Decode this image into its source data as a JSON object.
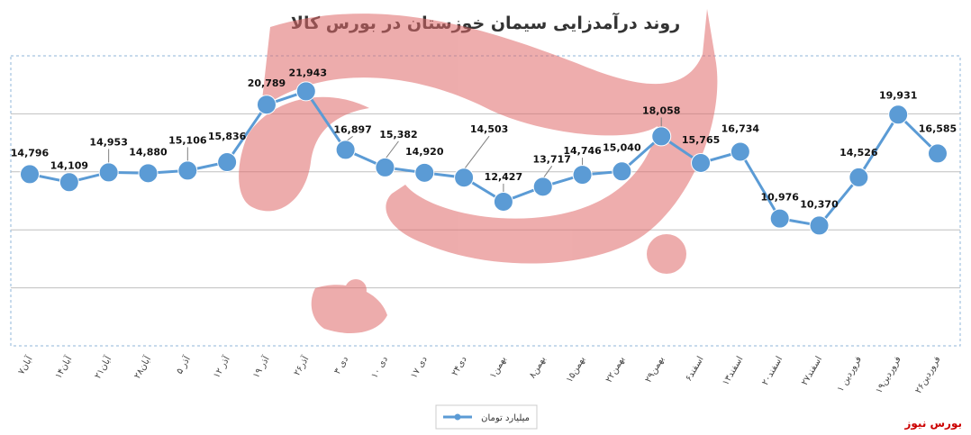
{
  "chart_data": {
    "type": "line",
    "title": "روند درآمدزایی سیمان خوزستان در بورس کالا",
    "xlabel": "",
    "ylabel": "",
    "ylim": [
      0,
      25000
    ],
    "grid": true,
    "legend_position": "bottom",
    "categories": [
      "۷آبان",
      "۱۴آبان",
      "۲۱آبان",
      "۲۸آبان",
      "۵ آذر",
      "۱۲ آذر",
      "۱۹ آذر",
      "۲۶آذر",
      "۳ دی",
      "۱۰ دی",
      "۱۷ دی",
      "۲۴دی",
      "۱بهمن",
      "۸بهمن",
      "۱۵بهمن",
      "۲۲بهمن",
      "۲۹بهمن",
      "۶اسفند",
      "۱۳اسفند",
      "۲۰اسفند",
      "۲۷اسفند",
      "۱ فروردین",
      "۱۹فروردین",
      "۲۶فروردین"
    ],
    "series": [
      {
        "name": "میلیارد تومان",
        "color": "#5b9bd5",
        "values": [
          14796,
          14109,
          14953,
          14880,
          15106,
          15836,
          20789,
          21943,
          16897,
          15382,
          14920,
          14503,
          12427,
          13717,
          14746,
          15040,
          18058,
          15765,
          16734,
          10976,
          10370,
          14526,
          19931,
          16585
        ],
        "labels": [
          "14,796",
          "14,109",
          "14,953",
          "14,880",
          "15,106",
          "15,836",
          "20,789",
          "21,943",
          "16,897",
          "15,382",
          "14,920",
          "14,503",
          "12,427",
          "13,717",
          "14,746",
          "15,040",
          "18,058",
          "15,765",
          "16,734",
          "10,976",
          "10,370",
          "14,526",
          "19,931",
          "16,585"
        ]
      }
    ]
  },
  "watermark": {
    "text": "بورس نیوز",
    "color": "#e07070"
  },
  "brand": {
    "text": "بورس نیوز",
    "color": "#cc0000"
  }
}
